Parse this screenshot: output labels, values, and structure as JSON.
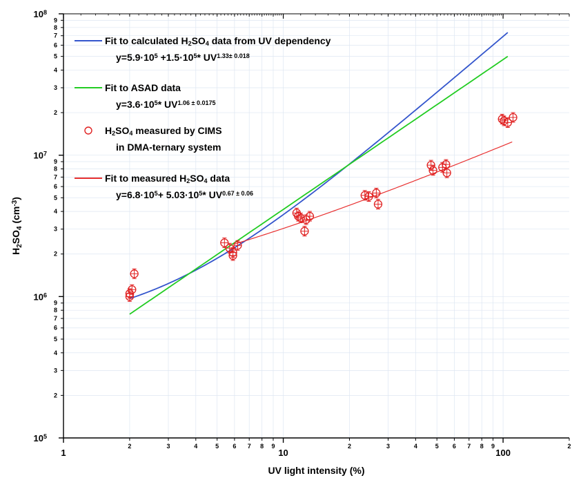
{
  "chart_data": {
    "type": "scatter",
    "x_scale": "log",
    "y_scale": "log",
    "xlim": [
      1,
      200
    ],
    "ylim": [
      100000,
      100000000
    ],
    "grid": true,
    "xlabel": "UV light intensity  (%)",
    "ylabel_parts": {
      "pre": "H",
      "sub1": "2",
      "mid": "SO",
      "sub2": "4",
      "post": "  (cm",
      "sup": "-3",
      "end": ")"
    },
    "x_major_ticks": [
      {
        "value": 1,
        "label": "1"
      },
      {
        "value": 10,
        "label": "10"
      },
      {
        "value": 100,
        "label": "100"
      }
    ],
    "x_minor_ticks": [
      {
        "value": 2,
        "label": "2"
      },
      {
        "value": 3,
        "label": "3"
      },
      {
        "value": 4,
        "label": "4"
      },
      {
        "value": 5,
        "label": "5"
      },
      {
        "value": 6,
        "label": "6"
      },
      {
        "value": 7,
        "label": "7"
      },
      {
        "value": 8,
        "label": "8"
      },
      {
        "value": 9,
        "label": "9"
      },
      {
        "value": 20,
        "label": "2"
      },
      {
        "value": 30,
        "label": "3"
      },
      {
        "value": 40,
        "label": "4"
      },
      {
        "value": 50,
        "label": "5"
      },
      {
        "value": 60,
        "label": "6"
      },
      {
        "value": 70,
        "label": "7"
      },
      {
        "value": 80,
        "label": "8"
      },
      {
        "value": 90,
        "label": "9"
      },
      {
        "value": 200,
        "label": "2"
      }
    ],
    "y_major_ticks": [
      {
        "value": 100000,
        "base": "10",
        "exp": "5"
      },
      {
        "value": 1000000,
        "base": "10",
        "exp": "6"
      },
      {
        "value": 10000000,
        "base": "10",
        "exp": "7"
      },
      {
        "value": 100000000,
        "base": "10",
        "exp": "8"
      }
    ],
    "y_minor_ticks": [
      {
        "value": 200000,
        "label": "2"
      },
      {
        "value": 300000,
        "label": "3"
      },
      {
        "value": 400000,
        "label": "4"
      },
      {
        "value": 500000,
        "label": "5"
      },
      {
        "value": 600000,
        "label": "6"
      },
      {
        "value": 700000,
        "label": "7"
      },
      {
        "value": 800000,
        "label": "8"
      },
      {
        "value": 900000,
        "label": "9"
      },
      {
        "value": 2000000,
        "label": "2"
      },
      {
        "value": 3000000,
        "label": "3"
      },
      {
        "value": 4000000,
        "label": "4"
      },
      {
        "value": 5000000,
        "label": "5"
      },
      {
        "value": 6000000,
        "label": "6"
      },
      {
        "value": 7000000,
        "label": "7"
      },
      {
        "value": 8000000,
        "label": "8"
      },
      {
        "value": 9000000,
        "label": "9"
      },
      {
        "value": 20000000,
        "label": "2"
      },
      {
        "value": 30000000,
        "label": "3"
      },
      {
        "value": 40000000,
        "label": "4"
      },
      {
        "value": 50000000,
        "label": "5"
      },
      {
        "value": 60000000,
        "label": "6"
      },
      {
        "value": 70000000,
        "label": "7"
      },
      {
        "value": 80000000,
        "label": "8"
      },
      {
        "value": 90000000,
        "label": "9"
      }
    ],
    "series": [
      {
        "kind": "line",
        "color": "#3355cc",
        "x_range": [
          2,
          105
        ],
        "formula": "5.9e5 + 1.5e5 * UV^1.33"
      },
      {
        "kind": "line",
        "color": "#22cc22",
        "x_range": [
          2,
          105
        ],
        "formula": "3.6e5 * UV^1.06"
      },
      {
        "kind": "line",
        "color": "#e83030",
        "x_range": [
          6,
          110
        ],
        "formula": "6.8e5 + 5.03e5 * UV^0.67"
      },
      {
        "kind": "scatter",
        "color": "#e02020",
        "points": [
          {
            "x": 2.0,
            "y": 1000000
          },
          {
            "x": 2.0,
            "y": 1050000
          },
          {
            "x": 2.05,
            "y": 1120000
          },
          {
            "x": 2.1,
            "y": 1450000
          },
          {
            "x": 5.4,
            "y": 2400000
          },
          {
            "x": 5.7,
            "y": 2200000
          },
          {
            "x": 5.9,
            "y": 2050000
          },
          {
            "x": 5.9,
            "y": 1950000
          },
          {
            "x": 6.2,
            "y": 2300000
          },
          {
            "x": 11.5,
            "y": 3900000
          },
          {
            "x": 11.7,
            "y": 3700000
          },
          {
            "x": 12.0,
            "y": 3600000
          },
          {
            "x": 12.5,
            "y": 2900000
          },
          {
            "x": 12.7,
            "y": 3500000
          },
          {
            "x": 13.2,
            "y": 3700000
          },
          {
            "x": 23.5,
            "y": 5200000
          },
          {
            "x": 24.5,
            "y": 5100000
          },
          {
            "x": 26.5,
            "y": 5400000
          },
          {
            "x": 27.0,
            "y": 4500000
          },
          {
            "x": 47.0,
            "y": 8500000
          },
          {
            "x": 48.0,
            "y": 7800000
          },
          {
            "x": 53.0,
            "y": 8200000
          },
          {
            "x": 55.0,
            "y": 8600000
          },
          {
            "x": 55.5,
            "y": 7500000
          },
          {
            "x": 99.0,
            "y": 18000000
          },
          {
            "x": 101.0,
            "y": 17500000
          },
          {
            "x": 105.0,
            "y": 17000000
          },
          {
            "x": 111.0,
            "y": 18500000
          }
        ]
      }
    ],
    "legend": {
      "placement": "top-left",
      "entries": [
        {
          "marker": "line",
          "color": "#3355cc",
          "lines": [
            [
              {
                "t": "Fit to calculated H"
              },
              {
                "t": "2",
                "s": "sub"
              },
              {
                "t": "SO"
              },
              {
                "t": "4",
                "s": "sub"
              },
              {
                "t": " data from UV dependency"
              }
            ],
            [
              {
                "t": "y=5.9·10"
              },
              {
                "t": "5",
                "s": "sup"
              },
              {
                "t": " +1.5·10"
              },
              {
                "t": "5",
                "s": "sup"
              },
              {
                "t": "* UV"
              },
              {
                "t": "1.33± 0.018",
                "s": "sup"
              }
            ]
          ]
        },
        {
          "marker": "line",
          "color": "#22cc22",
          "lines": [
            [
              {
                "t": "Fit to ASAD data"
              }
            ],
            [
              {
                "t": "y=3.6·10"
              },
              {
                "t": "5",
                "s": "sup"
              },
              {
                "t": "* UV"
              },
              {
                "t": "1.06 ± 0.0175",
                "s": "sup"
              }
            ]
          ]
        },
        {
          "marker": "circle",
          "color": "#e02020",
          "lines": [
            [
              {
                "t": "H"
              },
              {
                "t": "2",
                "s": "sub"
              },
              {
                "t": "SO"
              },
              {
                "t": "4",
                "s": "sub"
              },
              {
                "t": " measured by CIMS"
              }
            ],
            [
              {
                "t": "in DMA-ternary system"
              }
            ]
          ]
        },
        {
          "marker": "line",
          "color": "#e83030",
          "lines": [
            [
              {
                "t": "Fit to measured H"
              },
              {
                "t": "2",
                "s": "sub"
              },
              {
                "t": "SO"
              },
              {
                "t": "4",
                "s": "sub"
              },
              {
                "t": " data"
              }
            ],
            [
              {
                "t": "y=6.8·10"
              },
              {
                "t": "5",
                "s": "sup"
              },
              {
                "t": "+ 5.03·10"
              },
              {
                "t": "5",
                "s": "sup"
              },
              {
                "t": "* UV"
              },
              {
                "t": "0.67 ± 0.06",
                "s": "sup"
              }
            ]
          ]
        }
      ]
    }
  }
}
